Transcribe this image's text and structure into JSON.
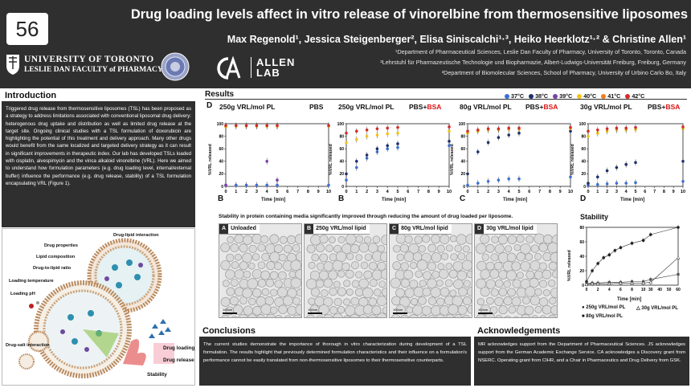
{
  "poster_number": "56",
  "title": "Drug loading levels affect in vitro release of vinorelbine from thermosensitive liposomes",
  "authors": "Max Regenold¹, Jessica Steigenberger², Elisa Siniscalchi¹·³, Heiko Heerklotz¹·² & Christine Allen¹",
  "affiliations": [
    "¹Department of Pharmaceutical Sciences, Leslie Dan Faculty of Pharmacy, University of Toronto, Toronto, Canada",
    "²Lehrstuhl für Pharmazeutische Technologie und Biopharmazie, Albert-Ludwigs-Universität Freiburg, Freiburg, Germany",
    "³Department of Biomolecular Sciences, School of Pharmacy, University of Urbino Carlo Bo, Italy"
  ],
  "logos": {
    "uoft_line1": "UNIVERSITY OF TORONTO",
    "uoft_line2": "LESLIE DAN FACULTY of PHARMACY",
    "allen_line1": "ALLEN",
    "allen_line2": "LAB"
  },
  "introduction": {
    "heading": "Introduction",
    "text": "Triggered drug release from thermosensitive liposomes (TSL) has been proposed as a strategy to address limitations associated with conventional liposomal drug delivery: heterogenous drug uptake and distribution as well as limited drug release at the target site. Ongoing clinical studies with a TSL formulation of doxorubicin are highlighting the potential of this treatment and delivery approach. Many other drugs would benefit from the same localized and targeted delivery strategy as it can result in significant improvements in therapeutic index. Our lab has developed TSLs loaded with cisplatin, alvespimycin and the vinca alkaloid vinorelbine (VRL). Here we aimed to understand how formulation parameters (e.g. drug loading level, internal/external buffer) influence the performance (e.g. drug release, stability) of a TSL formulation encapsulating VRL (Figure 1)."
  },
  "diagram_labels": {
    "drug_lipid_interaction": "Drug-lipid interaction",
    "drug_properties": "Drug properties",
    "lipid_composition": "Lipid composition",
    "drug_to_lipid": "Drug-to-lipid ratio",
    "loading_temperature": "Loading temperature",
    "loading_ph": "Loading pH",
    "drug_salt_interaction": "Drug-salt interaction",
    "drug_loading": "Drug loading",
    "drug_release": "Drug release",
    "stability": "Stability"
  },
  "results": {
    "heading": "Results",
    "temp_legend": [
      {
        "label": "37°C",
        "color": "#3b6fd6"
      },
      {
        "label": "38°C",
        "color": "#1f2f6b"
      },
      {
        "label": "39°C",
        "color": "#7a3fa8"
      },
      {
        "label": "40°C",
        "color": "#f2c418"
      },
      {
        "label": "41°C",
        "color": "#f07d1a"
      },
      {
        "label": "42°C",
        "color": "#d42a2a"
      }
    ],
    "panels": [
      {
        "title": "250g VRL/mol PL",
        "medium": "PBS",
        "medium_bsa": "",
        "letter": "B",
        "xlabel": "Time [min]",
        "ylabel": "%VRL released"
      },
      {
        "title": "250g VRL/mol PL",
        "medium": "PBS+",
        "medium_bsa": "BSA",
        "letter": "B",
        "xlabel": "Time [min]",
        "ylabel": "%VRL released"
      },
      {
        "title": "80g VRL/mol PL",
        "medium": "PBS+",
        "medium_bsa": "BSA",
        "letter": "C",
        "xlabel": "Time [min]",
        "ylabel": "%VRL released"
      },
      {
        "title": "30g VRL/mol PL",
        "medium": "PBS+",
        "medium_bsa": "BSA",
        "letter": "D",
        "xlabel": "Time [min]",
        "ylabel": "%VRL released"
      }
    ],
    "panel_x_ticks": [
      "0",
      "1",
      "2",
      "3",
      "4",
      "5",
      "6",
      "7",
      "8",
      "9",
      "10"
    ],
    "panel_y_ticks": [
      "0",
      "20",
      "40",
      "60",
      "80",
      "100"
    ],
    "corner_letter": "D",
    "stability_caption": "Stability in protein containing media significantly improved through reducing the amount of drug loaded per liposome.",
    "tem_panels": [
      {
        "letter": "A",
        "label": "Unloaded",
        "scale": "100nm"
      },
      {
        "letter": "B",
        "label": "250g VRL/mol lipid",
        "scale": "100nm"
      },
      {
        "letter": "C",
        "label": "80g VRL/mol lipid",
        "scale": "100nm"
      },
      {
        "letter": "D",
        "label": "30g VRL/mol lipid",
        "scale": "100nm"
      }
    ]
  },
  "chart_data": [
    {
      "type": "scatter",
      "title": "250g VRL/mol PL  PBS",
      "xlabel": "Time [min]",
      "ylabel": "%VRL released",
      "xlim": [
        0,
        10
      ],
      "ylim": [
        0,
        100
      ],
      "series": [
        {
          "name": "37°C",
          "x": [
            0,
            1,
            2,
            3,
            4,
            5,
            10
          ],
          "y": [
            2,
            2,
            2,
            2,
            2,
            2,
            2
          ]
        },
        {
          "name": "39°C",
          "x": [
            0,
            4,
            5
          ],
          "y": [
            2,
            40,
            10
          ]
        },
        {
          "name": "40°C",
          "x": [
            0,
            1,
            2,
            3,
            4,
            5,
            10
          ],
          "y": [
            95,
            96,
            96,
            96,
            96,
            96,
            96
          ]
        },
        {
          "name": "42°C",
          "x": [
            0,
            1,
            2,
            3,
            4,
            5,
            10
          ],
          "y": [
            97,
            97,
            97,
            97,
            97,
            97,
            97
          ]
        }
      ]
    },
    {
      "type": "scatter",
      "title": "250g VRL/mol PL  PBS+BSA",
      "xlabel": "Time [min]",
      "ylabel": "%VRL released",
      "xlim": [
        0,
        10
      ],
      "ylim": [
        0,
        100
      ],
      "series": [
        {
          "name": "37°C",
          "x": [
            0,
            1,
            2,
            3,
            4,
            5,
            10
          ],
          "y": [
            10,
            30,
            45,
            55,
            60,
            62,
            65
          ]
        },
        {
          "name": "38°C",
          "x": [
            0,
            1,
            2,
            3,
            4,
            5,
            10
          ],
          "y": [
            20,
            40,
            50,
            60,
            65,
            68,
            72
          ]
        },
        {
          "name": "40°C",
          "x": [
            0,
            1,
            2,
            3,
            4,
            5,
            10
          ],
          "y": [
            70,
            75,
            80,
            82,
            84,
            85,
            88
          ]
        },
        {
          "name": "42°C",
          "x": [
            0,
            1,
            2,
            3,
            4,
            5,
            10
          ],
          "y": [
            85,
            88,
            90,
            92,
            93,
            94,
            95
          ]
        }
      ]
    },
    {
      "type": "scatter",
      "title": "80g VRL/mol PL  PBS+BSA",
      "xlabel": "Time [min]",
      "ylabel": "%VRL released",
      "xlim": [
        0,
        10
      ],
      "ylim": [
        0,
        100
      ],
      "series": [
        {
          "name": "37°C",
          "x": [
            0,
            1,
            2,
            3,
            4,
            5,
            10
          ],
          "y": [
            2,
            5,
            8,
            10,
            12,
            12,
            15
          ]
        },
        {
          "name": "38°C",
          "x": [
            0,
            1,
            2,
            3,
            4,
            5,
            10
          ],
          "y": [
            20,
            55,
            70,
            78,
            82,
            85,
            88
          ]
        },
        {
          "name": "40°C",
          "x": [
            0,
            1,
            2,
            3,
            4,
            5,
            10
          ],
          "y": [
            85,
            88,
            90,
            90,
            91,
            91,
            92
          ]
        },
        {
          "name": "42°C",
          "x": [
            0,
            1,
            2,
            3,
            4,
            5,
            10
          ],
          "y": [
            88,
            90,
            92,
            92,
            93,
            93,
            94
          ]
        }
      ]
    },
    {
      "type": "scatter",
      "title": "30g VRL/mol PL  PBS+BSA",
      "xlabel": "Time [min]",
      "ylabel": "%VRL released",
      "xlim": [
        0,
        10
      ],
      "ylim": [
        0,
        100
      ],
      "series": [
        {
          "name": "37°C",
          "x": [
            0,
            1,
            2,
            3,
            4,
            5,
            10
          ],
          "y": [
            2,
            3,
            4,
            5,
            5,
            6,
            8
          ]
        },
        {
          "name": "38°C",
          "x": [
            0,
            1,
            2,
            3,
            4,
            5,
            10
          ],
          "y": [
            5,
            15,
            25,
            30,
            35,
            38,
            40
          ]
        },
        {
          "name": "40°C",
          "x": [
            0,
            1,
            2,
            3,
            4,
            5,
            10
          ],
          "y": [
            80,
            85,
            88,
            90,
            90,
            91,
            92
          ]
        },
        {
          "name": "42°C",
          "x": [
            0,
            1,
            2,
            3,
            4,
            5,
            10
          ],
          "y": [
            88,
            90,
            92,
            93,
            93,
            94,
            95
          ]
        }
      ]
    },
    {
      "type": "line",
      "title": "Stability",
      "xlabel": "Time [min]",
      "ylabel": "%VRL released",
      "ylim": [
        0,
        80
      ],
      "x_ticks": [
        "0",
        "2",
        "4",
        "6",
        "8",
        "10",
        "30",
        "40",
        "50",
        "60"
      ],
      "y_ticks": [
        "0",
        "20",
        "40",
        "60",
        "80"
      ],
      "series": [
        {
          "name": "250g VRL/mol PL",
          "x": [
            0,
            1,
            2,
            3,
            4,
            5,
            6,
            8,
            10,
            30,
            60
          ],
          "y": [
            5,
            20,
            30,
            38,
            42,
            48,
            52,
            58,
            62,
            70,
            80
          ]
        },
        {
          "name": "80g VRL/mol PL",
          "x": [
            0,
            1,
            2,
            4,
            6,
            8,
            10,
            30,
            60
          ],
          "y": [
            2,
            3,
            3,
            4,
            4,
            5,
            5,
            8,
            15
          ]
        },
        {
          "name": "30g VRL/mol PL",
          "x": [
            0,
            1,
            2,
            4,
            6,
            8,
            10,
            30,
            60
          ],
          "y": [
            1,
            2,
            2,
            2,
            3,
            3,
            3,
            4,
            38
          ]
        }
      ]
    }
  ],
  "stability": {
    "title": "Stability",
    "legend": [
      "250g VRL/mol PL",
      "30g VRL/mol PL",
      "80g VRL/mol PL"
    ],
    "xlabel": "Time [min]",
    "ylabel": "%VRL released"
  },
  "conclusions": {
    "heading": "Conclusions",
    "text": "The current studies demonstrate the importance of thorough in vitro characterization during development of a TSL formulation. The results highlight that previously determined formulation characteristics and their influence on a formulation's performance cannot be easily translated from non-thermosensitive liposomes to their thermosensitive counterparts."
  },
  "acknowledgements": {
    "heading": "Acknowledgements",
    "text": "MR acknowledges support from the Department of Pharmaceutical Sciences. JS acknowledges support from the German Academic Exchange Service. CA acknowledges a Discovery grant from NSERC. Operating grant from CIHR, and a Chair in Pharmaceutics and Drug Delivery from GSK."
  },
  "colors": {
    "dark_band": "#2f2f2f",
    "bsa_red": "#d11111"
  }
}
